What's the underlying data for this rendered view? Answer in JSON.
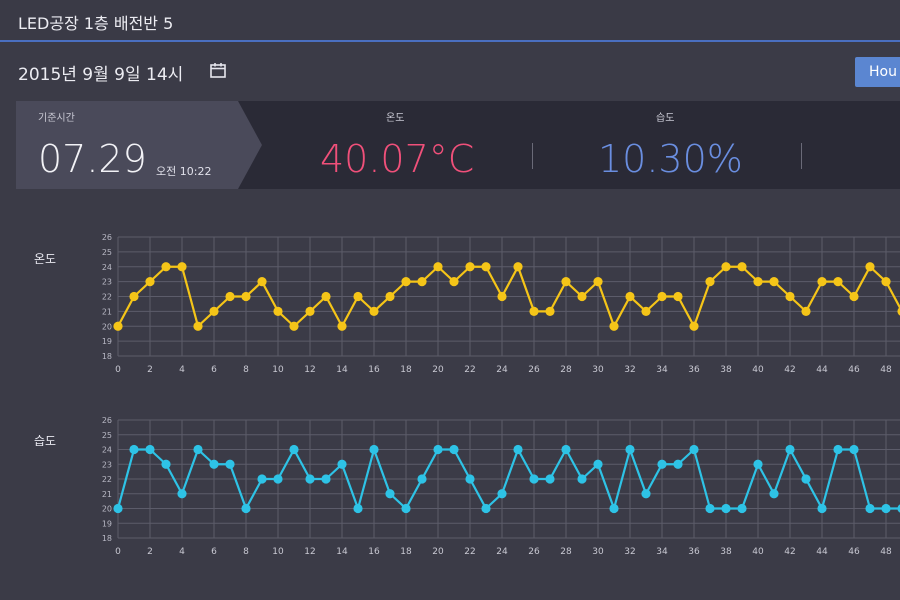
{
  "header": {
    "title": "LED공장 1층 배전반 5"
  },
  "datebar": {
    "datetime": "2015년 9월 9일 14시",
    "hour_button_label": "Hou"
  },
  "stats": {
    "base_label": "기준시간",
    "base_value": "07.29",
    "base_sub": "오전 10:22",
    "temp_label": "온도",
    "temp_value": "40.07°C",
    "hum_label": "습도",
    "hum_value": "10.30%"
  },
  "colors": {
    "temperature": "#f5c518",
    "humidity": "#2ec3e6",
    "accent": "#5b86d1"
  },
  "chart_data": [
    {
      "type": "line",
      "name": "온도",
      "color": "#f5c518",
      "ylim": [
        18,
        26
      ],
      "yticks": [
        18,
        19,
        20,
        21,
        22,
        23,
        24,
        25,
        26
      ],
      "xticks": [
        0,
        2,
        4,
        6,
        8,
        10,
        12,
        14,
        16,
        18,
        20,
        22,
        24,
        26,
        28,
        30,
        32,
        34,
        36,
        38,
        40,
        42,
        44,
        46,
        48
      ],
      "x": [
        0,
        1,
        2,
        3,
        4,
        5,
        6,
        7,
        8,
        9,
        10,
        11,
        12,
        13,
        14,
        15,
        16,
        17,
        18,
        19,
        20,
        21,
        22,
        23,
        24,
        25,
        26,
        27,
        28,
        29,
        30,
        31,
        32,
        33,
        34,
        35,
        36,
        37,
        38,
        39,
        40,
        41,
        42,
        43,
        44,
        45,
        46,
        47,
        48,
        49
      ],
      "values": [
        20,
        22,
        23,
        24,
        24,
        20,
        21,
        22,
        22,
        23,
        21,
        20,
        21,
        22,
        20,
        22,
        21,
        22,
        23,
        23,
        24,
        23,
        24,
        24,
        22,
        24,
        21,
        21,
        23,
        22,
        23,
        20,
        22,
        21,
        22,
        22,
        20,
        23,
        24,
        24,
        23,
        23,
        22,
        21,
        23,
        23,
        22,
        24,
        23,
        21
      ]
    },
    {
      "type": "line",
      "name": "습도",
      "color": "#2ec3e6",
      "ylim": [
        18,
        26
      ],
      "yticks": [
        18,
        19,
        20,
        21,
        22,
        23,
        24,
        25,
        26
      ],
      "xticks": [
        0,
        2,
        4,
        6,
        8,
        10,
        12,
        14,
        16,
        18,
        20,
        22,
        24,
        26,
        28,
        30,
        32,
        34,
        36,
        38,
        40,
        42,
        44,
        46,
        48
      ],
      "x": [
        0,
        1,
        2,
        3,
        4,
        5,
        6,
        7,
        8,
        9,
        10,
        11,
        12,
        13,
        14,
        15,
        16,
        17,
        18,
        19,
        20,
        21,
        22,
        23,
        24,
        25,
        26,
        27,
        28,
        29,
        30,
        31,
        32,
        33,
        34,
        35,
        36,
        37,
        38,
        39,
        40,
        41,
        42,
        43,
        44,
        45,
        46,
        47,
        48,
        49
      ],
      "values": [
        20,
        24,
        24,
        23,
        21,
        24,
        23,
        23,
        20,
        22,
        22,
        24,
        22,
        22,
        23,
        20,
        24,
        21,
        20,
        22,
        24,
        24,
        22,
        20,
        21,
        24,
        22,
        22,
        24,
        22,
        23,
        20,
        24,
        21,
        23,
        23,
        24,
        20,
        20,
        20,
        23,
        21,
        24,
        22,
        20,
        24,
        24,
        20,
        20,
        20
      ]
    }
  ]
}
